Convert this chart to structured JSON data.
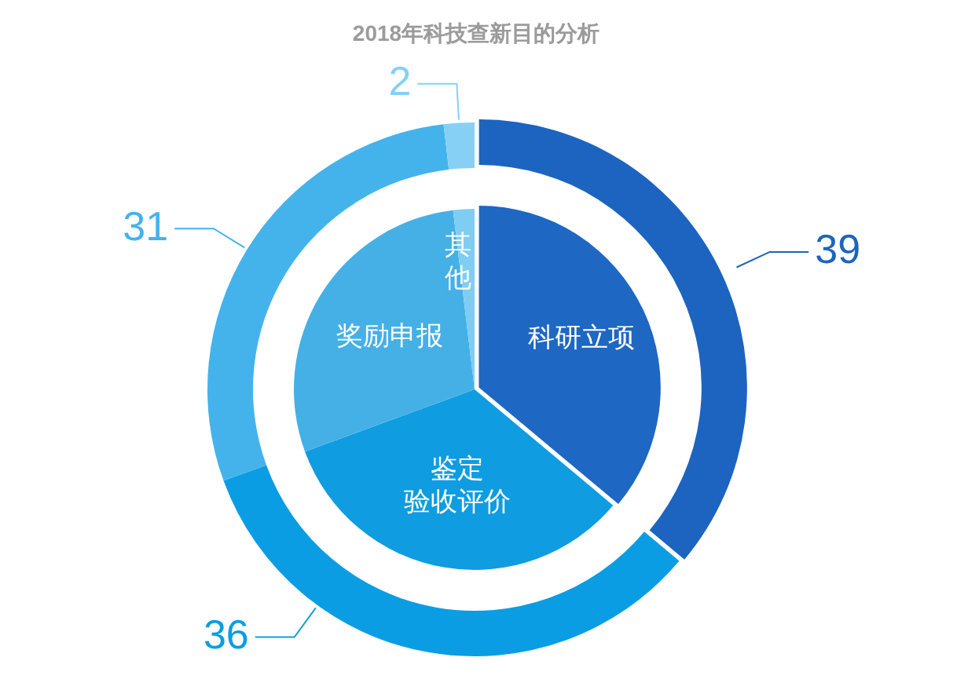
{
  "chart_data": {
    "type": "donut",
    "title": "2018年科技查新目的分析",
    "categories": [
      "科研立项",
      "鉴定验收评价",
      "奖励申报",
      "其他"
    ],
    "series": [
      {
        "values": [
          39,
          36,
          31,
          2
        ],
        "value_labels": [
          "39",
          "36",
          "31",
          "2"
        ],
        "colors": [
          "#1c64c0",
          "#0b9de3",
          "#44b3ec",
          "#86d0f6"
        ]
      },
      {
        "type": "pie",
        "values": [
          36.1,
          33.3,
          28.7,
          1.9
        ],
        "colors": [
          "#1e67c2",
          "#0f9ce0",
          "#45b0e6",
          "#7fcdf3"
        ]
      }
    ]
  }
}
